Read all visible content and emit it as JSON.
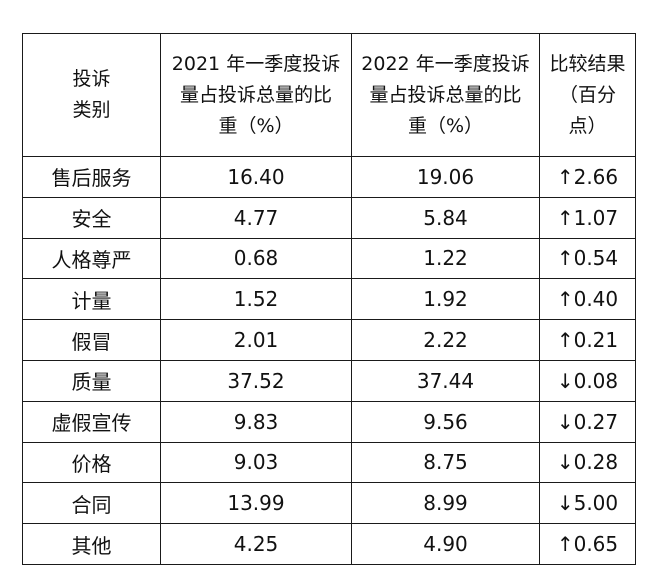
{
  "table": {
    "headers": [
      [
        "投诉",
        "类别"
      ],
      [
        "2021 年一季度投诉",
        "量占投诉总量的比",
        "重（%）"
      ],
      [
        "2022 年一季度投诉",
        "量占投诉总量的比",
        "重（%）"
      ],
      [
        "比较结果",
        "（百分",
        "点）"
      ]
    ],
    "rows": [
      [
        "售后服务",
        "16.40",
        "19.06",
        "↑2.66"
      ],
      [
        "安全",
        "4.77",
        "5.84",
        "↑1.07"
      ],
      [
        "人格尊严",
        "0.68",
        "1.22",
        "↑0.54"
      ],
      [
        "计量",
        "1.52",
        "1.92",
        "↑0.40"
      ],
      [
        "假冒",
        "2.01",
        "2.22",
        "↑0.21"
      ],
      [
        "质量",
        "37.52",
        "37.44",
        "↓0.08"
      ],
      [
        "虚假宣传",
        "9.83",
        "9.56",
        "↓0.27"
      ],
      [
        "价格",
        "9.03",
        "8.75",
        "↓0.28"
      ],
      [
        "合同",
        "13.99",
        "8.99",
        "↓5.00"
      ],
      [
        "其他",
        "4.25",
        "4.90",
        "↑0.65"
      ]
    ]
  }
}
